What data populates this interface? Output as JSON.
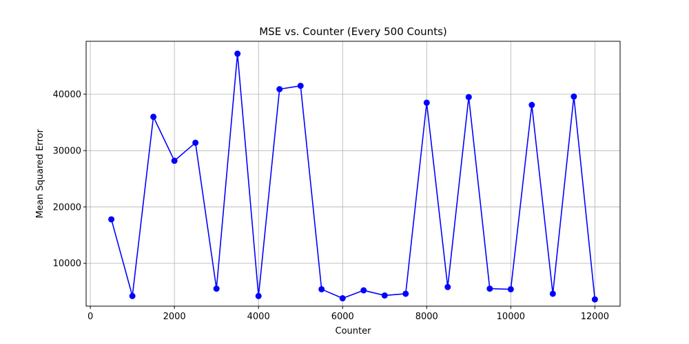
{
  "chart_data": {
    "type": "line",
    "title": "MSE vs. Counter (Every 500 Counts)",
    "xlabel": "Counter",
    "ylabel": "Mean Squared Error",
    "xlim": [
      -100,
      12600
    ],
    "ylim": [
      2400,
      49400
    ],
    "xticks": [
      0,
      2000,
      4000,
      6000,
      8000,
      10000,
      12000
    ],
    "yticks": [
      10000,
      20000,
      30000,
      40000
    ],
    "grid": true,
    "legend": "none",
    "series": [
      {
        "color": "#0000ff",
        "marker": "circle",
        "x": [
          500,
          1000,
          1500,
          2000,
          2500,
          3000,
          3500,
          4000,
          4500,
          5000,
          5500,
          6000,
          6500,
          7000,
          7500,
          8000,
          8500,
          9000,
          9500,
          10000,
          10500,
          11000,
          11500,
          12000
        ],
        "y": [
          17800,
          4200,
          36000,
          28200,
          31400,
          5500,
          47200,
          4200,
          40900,
          41500,
          5400,
          3800,
          5200,
          4300,
          4600,
          38500,
          5800,
          39500,
          5500,
          5400,
          38100,
          4600,
          39600,
          3600
        ]
      }
    ]
  }
}
